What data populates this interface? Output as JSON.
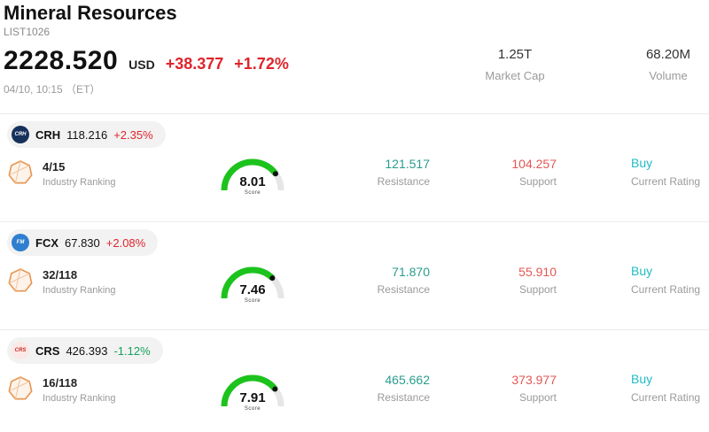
{
  "header": {
    "title": "Mineral Resources",
    "subtitle": "LIST1026",
    "price": "2228.520",
    "currency": "USD",
    "change_abs": "+38.377",
    "change_pct": "+1.72%",
    "change_color": "#e0242b",
    "datetime": "04/10, 10:15 （ET）",
    "market_cap_value": "1.25T",
    "market_cap_label": "Market Cap",
    "volume_value": "68.20M",
    "volume_label": "Volume"
  },
  "colors": {
    "up": "#e0242b",
    "down": "#16a05d",
    "resistance": "#2a9d8f",
    "support": "#e25754",
    "buy": "#22bdc5",
    "gauge_green": "#1dc31d",
    "gauge_track": "#e6e6e6",
    "gauge_dot": "#111111",
    "medal_stroke": "#e8954f",
    "medal_fill": "#fdf3ea"
  },
  "stocks": [
    {
      "ticker": "CRH",
      "price": "118.216",
      "change": "+2.35%",
      "change_color": "#e0242b",
      "logo_text": "CRH",
      "logo_bg": "#16325c",
      "logo_color": "#ffffff",
      "ranking": "4/15",
      "ranking_label": "Industry Ranking",
      "score": 8.01,
      "score_display": "8.01",
      "score_label": "Score",
      "resistance": "121.517",
      "resistance_label": "Resistance",
      "support": "104.257",
      "support_label": "Support",
      "rating": "Buy",
      "rating_label": "Current Rating"
    },
    {
      "ticker": "FCX",
      "price": "67.830",
      "change": "+2.08%",
      "change_color": "#e0242b",
      "logo_text": "FM",
      "logo_bg": "#2f7fd0",
      "logo_color": "#ffffff",
      "ranking": "32/118",
      "ranking_label": "Industry Ranking",
      "score": 7.46,
      "score_display": "7.46",
      "score_label": "Score",
      "resistance": "71.870",
      "resistance_label": "Resistance",
      "support": "55.910",
      "support_label": "Support",
      "rating": "Buy",
      "rating_label": "Current Rating"
    },
    {
      "ticker": "CRS",
      "price": "426.393",
      "change": "-1.12%",
      "change_color": "#16a05d",
      "logo_text": "CRS",
      "logo_bg": "#fbe9e7",
      "logo_color": "#cc2a1e",
      "ranking": "16/118",
      "ranking_label": "Industry Ranking",
      "score": 7.91,
      "score_display": "7.91",
      "score_label": "Score",
      "resistance": "465.662",
      "resistance_label": "Resistance",
      "support": "373.977",
      "support_label": "Support",
      "rating": "Buy",
      "rating_label": "Current Rating"
    }
  ]
}
